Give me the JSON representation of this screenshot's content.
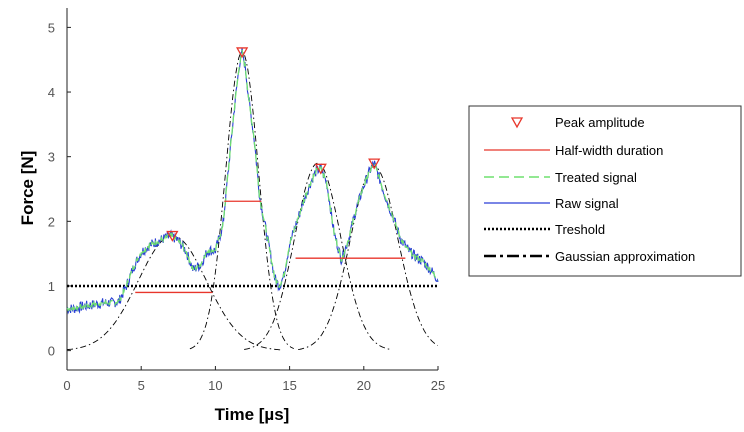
{
  "chart_data": {
    "type": "line",
    "xlabel": "Time [µs]",
    "ylabel": "Force [N]",
    "xlim": [
      0,
      25
    ],
    "ylim": [
      -0.3,
      5.3
    ],
    "xticks": [
      0,
      5,
      10,
      15,
      20,
      25
    ],
    "yticks": [
      0,
      1,
      2,
      3,
      4,
      5
    ],
    "grid": false,
    "legend_position": "right-outside",
    "legend": [
      "Peak amplitude",
      "Half-width duration",
      "Treated signal",
      "Raw signal",
      "Treshold",
      "Gaussian approximation"
    ],
    "colors": {
      "peak": "#e8362b",
      "half_width": "#e8362b",
      "treated": "#6fe06f",
      "raw": "#2a3fd6",
      "threshold": "#000000",
      "gaussian": "#000000"
    },
    "threshold": 1.0,
    "peaks": [
      {
        "x": 7.1,
        "y": 1.78
      },
      {
        "x": 11.8,
        "y": 4.62
      },
      {
        "x": 17.1,
        "y": 2.82
      },
      {
        "x": 20.7,
        "y": 2.9
      }
    ],
    "half_width_durations": [
      {
        "x_start": 4.6,
        "x_end": 9.8,
        "y": 0.9
      },
      {
        "x_start": 10.6,
        "x_end": 13.1,
        "y": 2.31
      },
      {
        "x_start": 15.4,
        "x_end": 22.8,
        "y": 1.43
      }
    ],
    "gaussians": [
      {
        "center": 7.1,
        "amplitude": 1.78,
        "sigma": 2.3
      },
      {
        "center": 11.8,
        "amplitude": 4.62,
        "sigma": 1.1
      },
      {
        "center": 16.9,
        "amplitude": 2.9,
        "sigma": 1.55
      },
      {
        "center": 20.7,
        "amplitude": 2.85,
        "sigma": 1.6
      }
    ],
    "signal": {
      "x": [
        0,
        0.5,
        1,
        1.5,
        2,
        2.5,
        3,
        3.5,
        4,
        4.5,
        5,
        5.5,
        6,
        6.5,
        7,
        7.5,
        8,
        8.5,
        9,
        9.5,
        10,
        10.5,
        11,
        11.3,
        11.6,
        11.8,
        12,
        12.3,
        12.6,
        13,
        13.5,
        14,
        14.3,
        14.6,
        15,
        15.5,
        16,
        16.5,
        16.8,
        17.1,
        17.5,
        18,
        18.5,
        19,
        19.5,
        20,
        20.4,
        20.7,
        21,
        21.5,
        22,
        22.5,
        23,
        23.5,
        24,
        24.5,
        25
      ],
      "y": [
        0.65,
        0.65,
        0.68,
        0.7,
        0.72,
        0.74,
        0.74,
        0.76,
        1.0,
        1.3,
        1.52,
        1.62,
        1.68,
        1.73,
        1.78,
        1.7,
        1.55,
        1.25,
        1.33,
        1.55,
        1.55,
        1.92,
        3.1,
        3.8,
        4.4,
        4.62,
        4.4,
        3.8,
        3.3,
        2.35,
        1.75,
        1.12,
        1.0,
        1.15,
        1.65,
        2.0,
        2.35,
        2.65,
        2.78,
        2.82,
        2.6,
        1.82,
        1.4,
        1.75,
        2.2,
        2.55,
        2.78,
        2.9,
        2.7,
        2.35,
        2.05,
        1.72,
        1.55,
        1.45,
        1.38,
        1.25,
        1.1
      ]
    }
  }
}
